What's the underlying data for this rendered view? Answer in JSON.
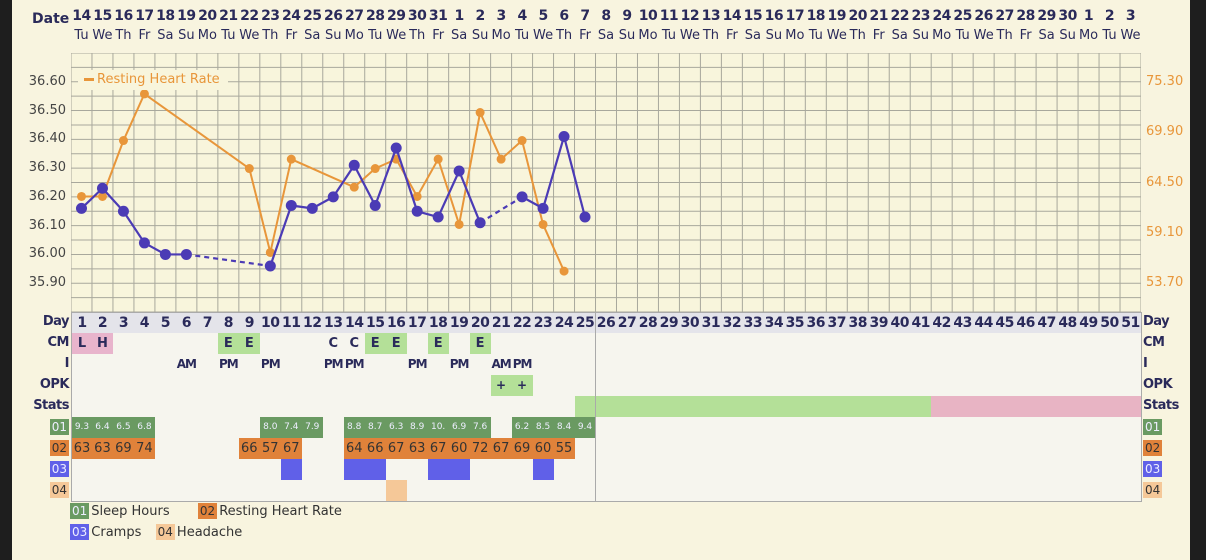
{
  "header": {
    "date_label": "Date"
  },
  "dates": [
    "14",
    "15",
    "16",
    "17",
    "18",
    "19",
    "20",
    "21",
    "22",
    "23",
    "24",
    "25",
    "26",
    "27",
    "28",
    "29",
    "30",
    "31",
    "1",
    "2",
    "3",
    "4",
    "5",
    "6",
    "7",
    "8",
    "9",
    "10",
    "11",
    "12",
    "13",
    "14",
    "15",
    "16",
    "17",
    "18",
    "19",
    "20",
    "21",
    "22",
    "23",
    "24",
    "25",
    "26",
    "27",
    "28",
    "29",
    "30",
    "1",
    "2",
    "3"
  ],
  "weekdays": [
    "Tu",
    "We",
    "Th",
    "Fr",
    "Sa",
    "Su",
    "Mo",
    "Tu",
    "We",
    "Th",
    "Fr",
    "Sa",
    "Su",
    "Mo",
    "Tu",
    "We",
    "Th",
    "Fr",
    "Sa",
    "Su",
    "Mo",
    "Tu",
    "We",
    "Th",
    "Fr",
    "Sa",
    "Su",
    "Mo",
    "Tu",
    "We",
    "Th",
    "Fr",
    "Sa",
    "Su",
    "Mo",
    "Tu",
    "We",
    "Th",
    "Fr",
    "Sa",
    "Su",
    "Mo",
    "Tu",
    "We",
    "Th",
    "Fr",
    "Sa",
    "Su",
    "Mo",
    "Tu",
    "We"
  ],
  "colors": {
    "temp": "#4b3bb5",
    "rhr": "#e8963a",
    "sleep": "#6a9a62",
    "rhr_tag": "#e0823a",
    "cramps": "#6060e8",
    "headache": "#f5c898",
    "green": "#b4e098",
    "pink": "#e8b4c4",
    "cm_pink": "#e8b4cc"
  },
  "chart_data": {
    "type": "line",
    "legend": "Resting Heart Rate",
    "left_ticks": [
      "36.60",
      "36.50",
      "36.40",
      "36.30",
      "36.20",
      "36.10",
      "36.00",
      "35.90"
    ],
    "right_ticks": [
      "75.30",
      "69.90",
      "64.50",
      "59.10",
      "53.70"
    ],
    "ylim": [
      35.8,
      36.7
    ],
    "ylim_right_map": {
      "36.60": 75.3,
      "35.90": 53.7
    },
    "series": [
      {
        "name": "Temperature",
        "points": [
          [
            1,
            36.16
          ],
          [
            2,
            36.23
          ],
          [
            3,
            36.15
          ],
          [
            4,
            36.04
          ],
          [
            5,
            36.0
          ],
          [
            6,
            36.0
          ],
          [
            10,
            35.96
          ],
          [
            11,
            36.17
          ],
          [
            12,
            36.16
          ],
          [
            13,
            36.2
          ],
          [
            14,
            36.31
          ],
          [
            15,
            36.17
          ],
          [
            16,
            36.37
          ],
          [
            17,
            36.15
          ],
          [
            18,
            36.13
          ],
          [
            19,
            36.29
          ],
          [
            20,
            36.11
          ],
          [
            22,
            36.2
          ],
          [
            23,
            36.16
          ],
          [
            24,
            36.41
          ],
          [
            25,
            36.13
          ]
        ]
      },
      {
        "name": "Resting Heart Rate",
        "points": [
          [
            1,
            63
          ],
          [
            2,
            63
          ],
          [
            3,
            69
          ],
          [
            4,
            74
          ],
          [
            9,
            66
          ],
          [
            10,
            57
          ],
          [
            11,
            67
          ],
          [
            14,
            64
          ],
          [
            15,
            66
          ],
          [
            16,
            67
          ],
          [
            17,
            63
          ],
          [
            18,
            67
          ],
          [
            19,
            60
          ],
          [
            20,
            72
          ],
          [
            21,
            67
          ],
          [
            22,
            69
          ],
          [
            23,
            60
          ],
          [
            24,
            55
          ]
        ]
      }
    ]
  },
  "rows": {
    "day": {
      "label": "Day"
    },
    "cm": {
      "label": "CM",
      "values": {
        "1": "L",
        "2": "H",
        "8": "E",
        "9": "E",
        "13": "C",
        "14": "C",
        "15": "E",
        "16": "E",
        "18": "E",
        "20": "E"
      }
    },
    "i": {
      "label": "I",
      "values": {
        "6": "AM",
        "8": "PM",
        "10": "PM",
        "13": "PM",
        "14": "PM",
        "17": "PM",
        "19": "PM",
        "21": "AM",
        "22": "PM"
      }
    },
    "opk": {
      "label": "OPK",
      "values": {
        "21": "+",
        "22": "+"
      }
    },
    "stats": {
      "label": "Stats",
      "green_range": [
        25,
        41
      ],
      "pink_range": [
        42,
        51
      ]
    },
    "s01": {
      "label": "01",
      "values": {
        "1": "9.3",
        "2": "6.4",
        "3": "6.5",
        "4": "6.8",
        "10": "8.0",
        "11": "7.4",
        "12": "7.9",
        "14": "8.8",
        "15": "8.7",
        "16": "6.3",
        "17": "8.9",
        "18": "10.",
        "19": "6.9",
        "20": "7.6",
        "22": "6.2",
        "23": "8.5",
        "24": "8.4",
        "25": "9.4"
      }
    },
    "s02": {
      "label": "02",
      "values": {
        "1": "63",
        "2": "63",
        "3": "69",
        "4": "74",
        "9": "66",
        "10": "57",
        "11": "67",
        "14": "64",
        "15": "66",
        "16": "67",
        "17": "63",
        "18": "67",
        "19": "60",
        "20": "72",
        "21": "67",
        "22": "69",
        "23": "60",
        "24": "55"
      }
    },
    "s03": {
      "label": "03",
      "days": [
        11,
        14,
        15,
        18,
        19,
        23
      ]
    },
    "s04": {
      "label": "04",
      "days": [
        16
      ]
    }
  },
  "legend": [
    {
      "code": "01",
      "label": "Sleep Hours"
    },
    {
      "code": "02",
      "label": "Resting Heart Rate"
    },
    {
      "code": "03",
      "label": "Cramps"
    },
    {
      "code": "04",
      "label": "Headache"
    }
  ]
}
